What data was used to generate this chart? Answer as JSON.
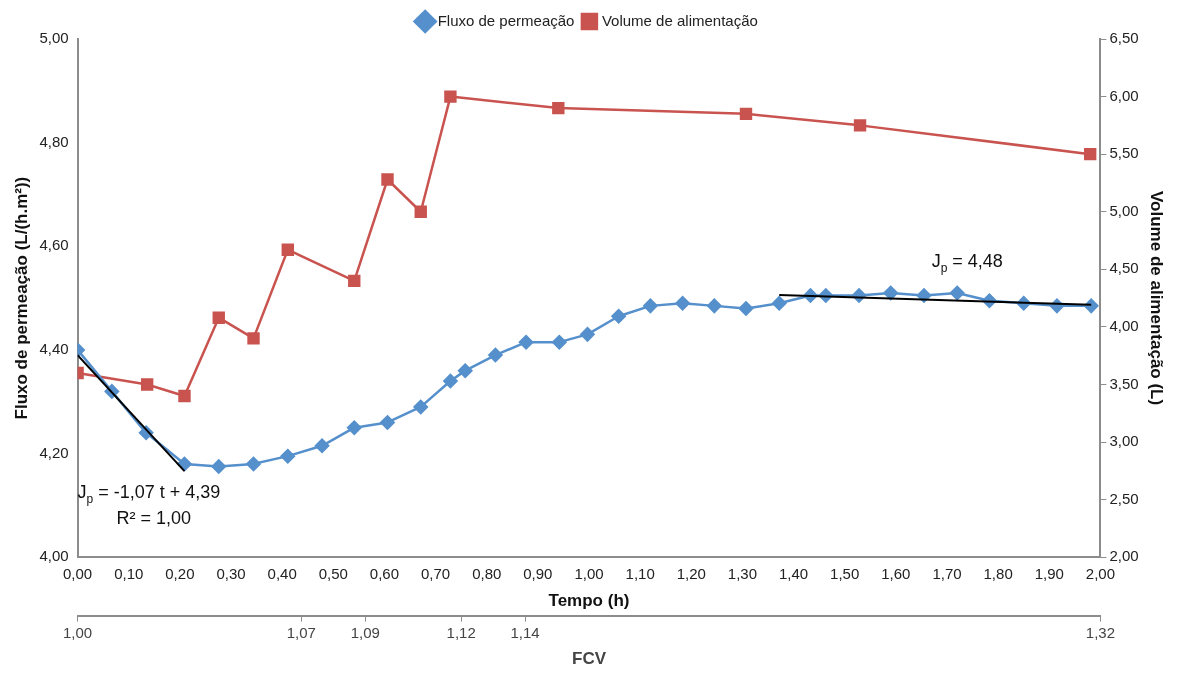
{
  "chart_data": {
    "type": "line",
    "xlabel": "Tempo (h)",
    "ylabel": "Fluxo de permeação (L/(h.m²))",
    "y2label": "Volume de alimentação (L)",
    "x2label": "FCV",
    "legend": "top",
    "grid": false,
    "xlim": [
      0,
      2
    ],
    "xticks": [
      {
        "value": 0,
        "label": "0,00"
      },
      {
        "value": 0.1,
        "label": "0,10"
      },
      {
        "value": 0.2,
        "label": "0,20"
      },
      {
        "value": 0.3,
        "label": "0,30"
      },
      {
        "value": 0.4,
        "label": "0,40"
      },
      {
        "value": 0.5,
        "label": "0,50"
      },
      {
        "value": 0.6,
        "label": "0,60"
      },
      {
        "value": 0.7,
        "label": "0,70"
      },
      {
        "value": 0.8,
        "label": "0,80"
      },
      {
        "value": 0.9,
        "label": "0,90"
      },
      {
        "value": 1,
        "label": "1,00"
      },
      {
        "value": 1.1,
        "label": "1,10"
      },
      {
        "value": 1.2,
        "label": "1,20"
      },
      {
        "value": 1.3,
        "label": "1,30"
      },
      {
        "value": 1.4,
        "label": "1,40"
      },
      {
        "value": 1.5,
        "label": "1,50"
      },
      {
        "value": 1.6,
        "label": "1,60"
      },
      {
        "value": 1.7,
        "label": "1,70"
      },
      {
        "value": 1.8,
        "label": "1,80"
      },
      {
        "value": 1.9,
        "label": "1,90"
      },
      {
        "value": 2,
        "label": "2,00"
      }
    ],
    "x2lim": [
      1,
      1.32
    ],
    "x2ticks": [
      {
        "value": 1,
        "label": "1,00"
      },
      {
        "value": 1.07,
        "label": "1,07"
      },
      {
        "value": 1.09,
        "label": "1,09"
      },
      {
        "value": 1.12,
        "label": "1,12"
      },
      {
        "value": 1.14,
        "label": "1,14"
      },
      {
        "value": 1.32,
        "label": "1,32"
      }
    ],
    "ylim": [
      4,
      5
    ],
    "yticks": [
      {
        "value": 4,
        "label": "4,00"
      },
      {
        "value": 4.2,
        "label": "4,20"
      },
      {
        "value": 4.4,
        "label": "4,40"
      },
      {
        "value": 4.6,
        "label": "4,60"
      },
      {
        "value": 4.8,
        "label": "4,80"
      },
      {
        "value": 5,
        "label": "5,00"
      }
    ],
    "y2lim": [
      2,
      6.5
    ],
    "y2ticks": [
      {
        "value": 2,
        "label": "2,00"
      },
      {
        "value": 2.5,
        "label": "2,50"
      },
      {
        "value": 3,
        "label": "3,00"
      },
      {
        "value": 3.5,
        "label": "3,50"
      },
      {
        "value": 4,
        "label": "4,00"
      },
      {
        "value": 4.5,
        "label": "4,50"
      },
      {
        "value": 5,
        "label": "5,00"
      },
      {
        "value": 5.5,
        "label": "5,50"
      },
      {
        "value": 6,
        "label": "6,00"
      },
      {
        "value": 6.5,
        "label": "6,50"
      }
    ],
    "series": [
      {
        "name": "Fluxo de permeação",
        "color": "#5590cc",
        "marker": "diamond",
        "x": [
          0,
          0.067,
          0.134,
          0.209,
          0.276,
          0.344,
          0.411,
          0.478,
          0.541,
          0.606,
          0.671,
          0.729,
          0.758,
          0.817,
          0.877,
          0.942,
          0.997,
          1.058,
          1.12,
          1.183,
          1.245,
          1.307,
          1.372,
          1.433,
          1.463,
          1.528,
          1.59,
          1.655,
          1.72,
          1.783,
          1.85,
          1.915,
          1.982
        ],
        "values": [
          4.4,
          4.32,
          4.24,
          4.18,
          4.175,
          4.18,
          4.195,
          4.215,
          4.25,
          4.26,
          4.29,
          4.34,
          4.36,
          4.39,
          4.415,
          4.415,
          4.43,
          4.465,
          4.485,
          4.49,
          4.485,
          4.48,
          4.49,
          4.505,
          4.505,
          4.505,
          4.51,
          4.505,
          4.51,
          4.495,
          4.49,
          4.485,
          4.485
        ]
      },
      {
        "name": "Volume de alimentação",
        "color": "#c9534f",
        "marker": "square",
        "axis": "y2",
        "x": [
          0,
          0.136,
          0.209,
          0.276,
          0.344,
          0.411,
          0.541,
          0.606,
          0.671,
          0.729,
          0.94,
          1.307,
          1.53,
          1.98
        ],
        "values": [
          3.6,
          3.5,
          3.4,
          4.08,
          3.9,
          4.67,
          4.4,
          5.28,
          5.0,
          6.0,
          5.9,
          5.85,
          5.75,
          5.5
        ]
      },
      {
        "type": "line",
        "color": "#000000",
        "marker": "none",
        "x": [
          0,
          0.209
        ],
        "values": [
          4.39,
          4.166
        ]
      },
      {
        "type": "line",
        "color": "#000000",
        "marker": "none",
        "x": [
          1.372,
          1.982
        ],
        "values": [
          4.506,
          4.487
        ]
      }
    ],
    "annotations": [
      "J$_{p}$ = -1,07 t + 4,39",
      "R² = 1,00",
      "J$_{p}$ = 4,48"
    ]
  }
}
